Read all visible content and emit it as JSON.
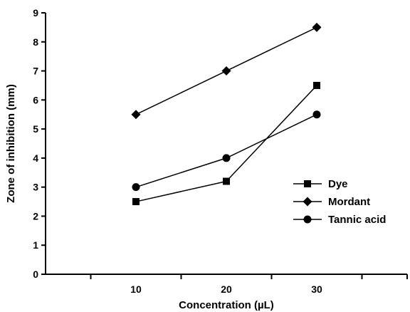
{
  "chart_data": {
    "type": "line",
    "title": "",
    "xlabel": "Concentration (µL)",
    "ylabel": "Zone of inhibition (mm)",
    "x": [
      10,
      20,
      30
    ],
    "x_tick_labels": [
      "10",
      "20",
      "30"
    ],
    "xlim": [
      0,
      40
    ],
    "ylim": [
      0,
      9
    ],
    "y_ticks": [
      "0",
      "1",
      "2",
      "3",
      "4",
      "5",
      "6",
      "7",
      "8",
      "9"
    ],
    "grid": false,
    "legend_position": "right",
    "series": [
      {
        "name": "Dye",
        "marker": "square",
        "values": [
          2.5,
          3.2,
          6.5
        ]
      },
      {
        "name": "Mordant",
        "marker": "diamond",
        "values": [
          5.5,
          7.0,
          8.5
        ]
      },
      {
        "name": "Tannic acid",
        "marker": "circle",
        "values": [
          3.0,
          4.0,
          5.5
        ]
      }
    ],
    "colors": {
      "line": "#000000",
      "marker": "#000000"
    }
  }
}
